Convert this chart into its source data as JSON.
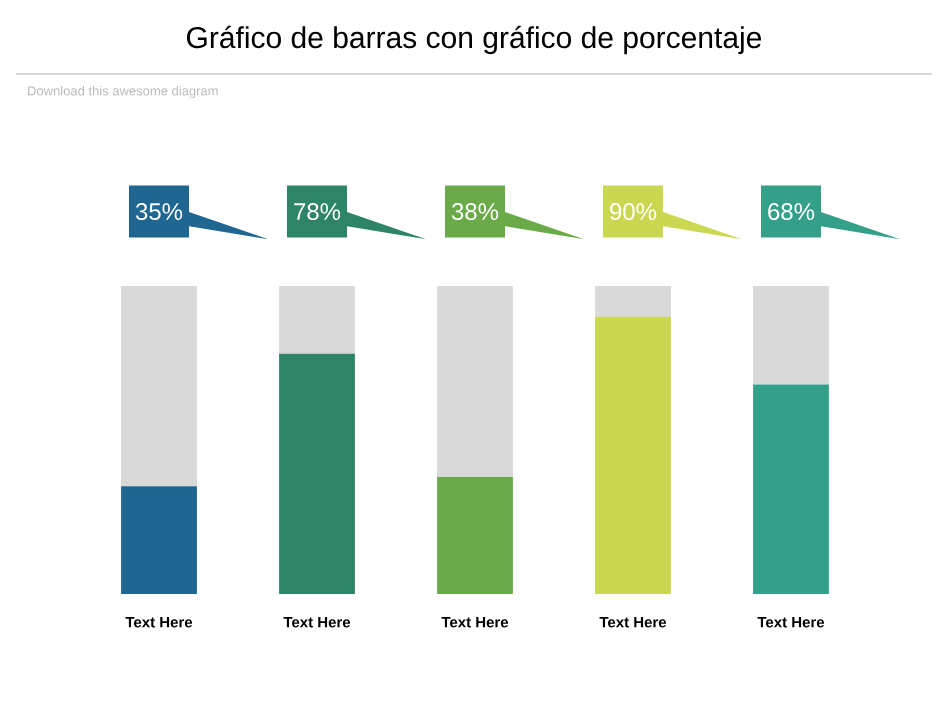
{
  "chart_data": {
    "type": "bar",
    "title": "Gráfico de barras con gráfico de porcentaje",
    "subtitle": "Download this awesome diagram",
    "categories": [
      "Text Here",
      "Text Here",
      "Text Here",
      "Text Here",
      "Text Here"
    ],
    "stacked": true,
    "ylim": [
      0,
      100
    ],
    "tick_labels": "x",
    "series": [
      {
        "colors": [
          "#1f6690",
          "#2e8466",
          "#6aaa48",
          "#c9d850",
          "#34a08a"
        ],
        "values": [
          35,
          78,
          38,
          90,
          68
        ],
        "value_labels": [
          "35%",
          "78%",
          "38%",
          "90%",
          "68%"
        ]
      },
      {
        "color": "#d9d9d9",
        "values": [
          65,
          22,
          62,
          10,
          32
        ]
      }
    ]
  }
}
